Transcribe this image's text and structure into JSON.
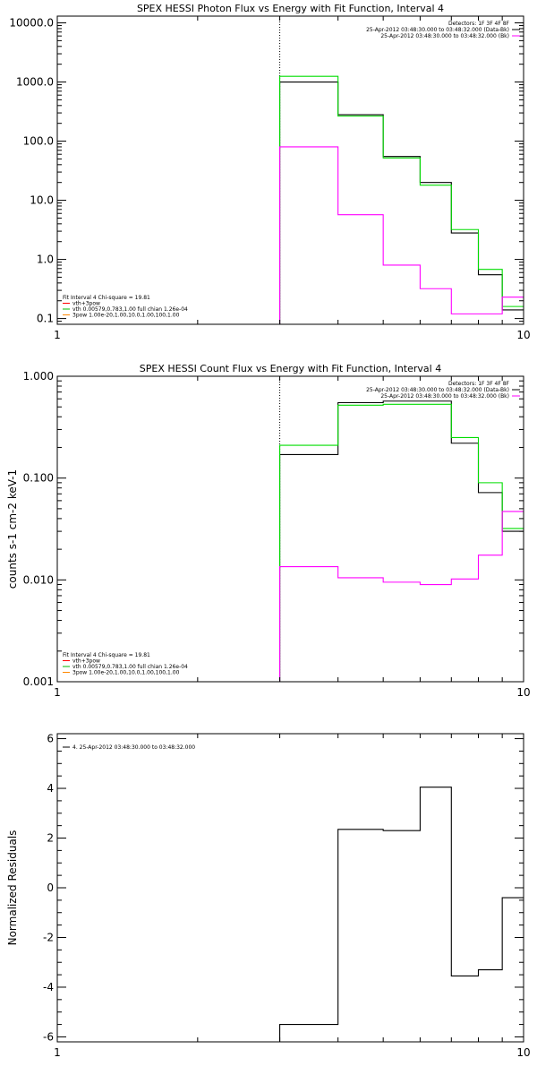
{
  "chart_data": [
    {
      "id": "photon",
      "type": "line",
      "title": "SPEX HESSI Photon Flux vs Energy with Fit Function, Interval 4",
      "xscale": "log",
      "yscale": "log",
      "xlim": [
        1,
        10
      ],
      "ylim": [
        0.08,
        13000
      ],
      "x_ticks": [
        1,
        10
      ],
      "y_ticks": [
        0.1,
        1.0,
        10.0,
        100.0,
        1000.0,
        10000.0
      ],
      "y_tick_labels": [
        "0.1",
        "1.0",
        "10.0",
        "100.0",
        "1000.0",
        "10000.0"
      ],
      "vline_x": 3.0,
      "legend_right": [
        {
          "text": "Detectors: 1F 3F 4F 8F",
          "color": "#000000"
        },
        {
          "text": "25-Apr-2012 03:48:30.000 to 03:48:32.000 (Data-Bk)",
          "color": "#000000"
        },
        {
          "text": "25-Apr-2012 03:48:30.000 to 03:48:32.000 (Bk)",
          "color": "#ff00ff"
        }
      ],
      "legend_left": [
        {
          "text": "Fit Interval 4   Chi-square = 19.81",
          "color": "#000000"
        },
        {
          "text": "vth+3pow",
          "color": "#ff0000"
        },
        {
          "text": "vth 0.00579,0.783,1.00   full chian 1.26e-04",
          "color": "#00bb00"
        },
        {
          "text": "3pow 1.00e-20,1.00,10.0,1.00,100,1.00",
          "color": "#ff8800"
        }
      ],
      "series": [
        {
          "color": "#000000",
          "edges": [
            3,
            4,
            5,
            6,
            7,
            8,
            9,
            10
          ],
          "values": [
            1000,
            280,
            55,
            20,
            2.8,
            0.55,
            0.14
          ]
        },
        {
          "color": "#00dd00",
          "edges": [
            3,
            4,
            5,
            6,
            7,
            8,
            9,
            10
          ],
          "values": [
            1250,
            265,
            52,
            18,
            3.2,
            0.68,
            0.16
          ]
        },
        {
          "color": "#ff00ff",
          "edges": [
            3,
            4,
            5,
            6,
            7,
            8,
            9,
            10
          ],
          "values": [
            80,
            5.7,
            0.8,
            0.32,
            0.12,
            0.12,
            0.23
          ]
        }
      ]
    },
    {
      "id": "count",
      "type": "line",
      "title": "SPEX HESSI Count Flux vs Energy with Fit Function, Interval 4",
      "ylabel": "counts s-1 cm-2 keV-1",
      "xscale": "log",
      "yscale": "log",
      "xlim": [
        1,
        10
      ],
      "ylim": [
        0.001,
        1.0
      ],
      "x_ticks": [
        1,
        10
      ],
      "y_ticks": [
        0.001,
        0.01,
        0.1,
        1.0
      ],
      "y_tick_labels": [
        "0.001",
        "0.010",
        "0.100",
        "1.000"
      ],
      "vline_x": 3.0,
      "legend_right": [
        {
          "text": "Detectors: 1F 3F 4F 8F",
          "color": "#000000"
        },
        {
          "text": "25-Apr-2012 03:48:30.000 to 03:48:32.000 (Data-Bk)",
          "color": "#000000"
        },
        {
          "text": "25-Apr-2012 03:48:30.000 to 03:48:32.000 (Bk)",
          "color": "#ff00ff"
        }
      ],
      "legend_left": [
        {
          "text": "Fit Interval 4   Chi-square = 19.81",
          "color": "#000000"
        },
        {
          "text": "vth+3pow",
          "color": "#ff0000"
        },
        {
          "text": "vth 0.00579,0.783,1.00   full chian 1.26e-04",
          "color": "#00bb00"
        },
        {
          "text": "3pow 1.00e-20,1.00,10.0,1.00,100,1.00",
          "color": "#ff8800"
        }
      ],
      "series": [
        {
          "color": "#000000",
          "edges": [
            3,
            4,
            5,
            6,
            7,
            8,
            9,
            10
          ],
          "values": [
            0.17,
            0.55,
            0.57,
            0.57,
            0.22,
            0.072,
            0.03
          ]
        },
        {
          "color": "#00dd00",
          "edges": [
            3,
            4,
            5,
            6,
            7,
            8,
            9,
            10
          ],
          "values": [
            0.21,
            0.52,
            0.53,
            0.53,
            0.25,
            0.09,
            0.032
          ]
        },
        {
          "color": "#ff00ff",
          "edges": [
            3,
            4,
            5,
            6,
            7,
            8,
            9,
            10
          ],
          "values": [
            0.0135,
            0.0105,
            0.0095,
            0.009,
            0.0102,
            0.0175,
            0.047
          ]
        }
      ]
    },
    {
      "id": "residuals",
      "type": "line",
      "title": "",
      "ylabel": "Normalized Residuals",
      "xscale": "log",
      "yscale": "linear",
      "xlim": [
        1,
        10
      ],
      "ylim": [
        -6.2,
        6.2
      ],
      "x_ticks": [
        1,
        10
      ],
      "y_ticks": [
        -6,
        -4,
        -2,
        0,
        2,
        4,
        6
      ],
      "y_tick_labels": [
        "-6",
        "-4",
        "-2",
        "0",
        "2",
        "4",
        "6"
      ],
      "legend_right": [],
      "legend_left": [
        {
          "text": "4. 25-Apr-2012 03:48:30.000 to 03:48:32.000",
          "color": "#000000"
        }
      ],
      "series": [
        {
          "color": "#000000",
          "edges": [
            3,
            4,
            5,
            6,
            7,
            8,
            9,
            10
          ],
          "values": [
            -5.5,
            2.35,
            2.3,
            4.05,
            -3.55,
            -3.3,
            -0.4
          ]
        }
      ]
    }
  ]
}
